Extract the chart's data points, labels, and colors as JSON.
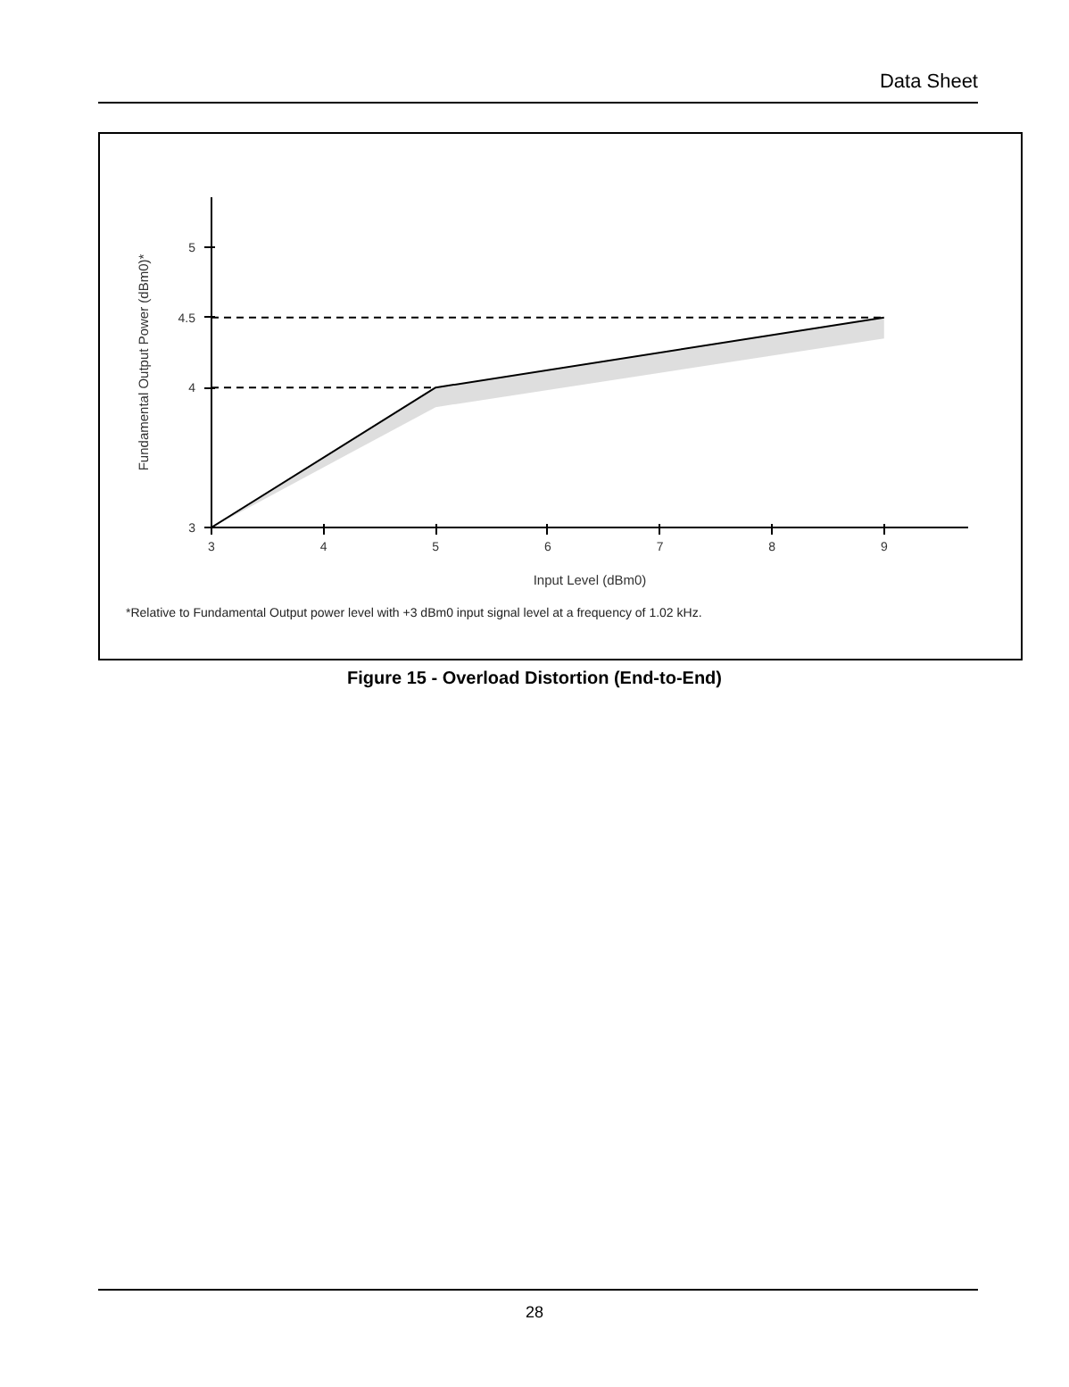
{
  "chart_data": {
    "type": "line",
    "title": "Figure 15 - Overload Distortion (End-to-End)",
    "xlabel": "Input Level (dBm0)",
    "ylabel": "Fundamental Output Power (dBm0)*",
    "annotations": [
      "Data Sheet",
      "*Relative to Fundamental Output power level with +3 dBm0 input signal level at a frequency of 1.02 kHz.",
      "28"
    ],
    "xlim": [
      3,
      9.75
    ],
    "xticks": [
      3,
      4,
      5,
      6,
      7,
      8,
      9
    ],
    "ylim": [
      3,
      5.36
    ],
    "yticks": [
      3,
      4,
      4.5,
      5
    ],
    "series": [
      {
        "color": "#000000",
        "x": [
          3,
          5,
          9
        ],
        "values": [
          3,
          4,
          4.5
        ],
        "lower": [
          3,
          3.86,
          4.35
        ],
        "upper": [
          3,
          4,
          4.5
        ]
      },
      {
        "color": "#000000",
        "line_style": "dashed",
        "x": [
          3,
          5
        ],
        "values": [
          4,
          4
        ]
      },
      {
        "color": "#000000",
        "line_style": "dashed",
        "x": [
          3,
          9
        ],
        "values": [
          4.5,
          4.5
        ]
      }
    ]
  }
}
